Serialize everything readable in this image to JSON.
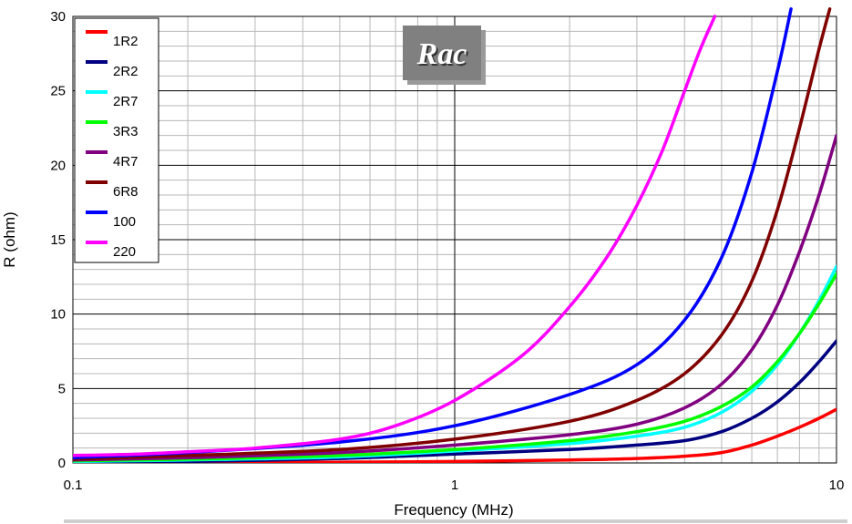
{
  "chart_data": {
    "type": "line",
    "title": "",
    "annotation": "Rac",
    "xlabel": "Frequency (MHz)",
    "ylabel": "R (ohm)",
    "x_scale": "log",
    "xlim": [
      0.1,
      10
    ],
    "ylim": [
      0,
      30
    ],
    "x_ticks": [
      0.1,
      1,
      10
    ],
    "x_tick_labels": [
      "0.1",
      "1",
      "10"
    ],
    "y_ticks": [
      0,
      5,
      10,
      15,
      20,
      25,
      30
    ],
    "y_tick_labels": [
      "0",
      "5",
      "10",
      "15",
      "20",
      "25",
      "30"
    ],
    "grid": true,
    "legend_position": "top-left",
    "series": [
      {
        "name": "1R2",
        "color": "#ff0000",
        "x": [
          0.1,
          0.2,
          0.5,
          1,
          2,
          3,
          4,
          5,
          6,
          7,
          8,
          9,
          10
        ],
        "y": [
          0,
          0.02,
          0.05,
          0.1,
          0.2,
          0.3,
          0.45,
          0.7,
          1.2,
          1.8,
          2.4,
          3.0,
          3.6
        ]
      },
      {
        "name": "2R2",
        "color": "#000080",
        "x": [
          0.1,
          0.2,
          0.5,
          1,
          2,
          3,
          4,
          5,
          6,
          7,
          8,
          9,
          10
        ],
        "y": [
          0.05,
          0.1,
          0.3,
          0.6,
          0.9,
          1.2,
          1.5,
          2.1,
          3.0,
          4.1,
          5.4,
          6.8,
          8.2
        ]
      },
      {
        "name": "2R7",
        "color": "#00ffff",
        "x": [
          0.1,
          0.2,
          0.5,
          1,
          2,
          3,
          4,
          5,
          6,
          7,
          8,
          9,
          10
        ],
        "y": [
          0.1,
          0.2,
          0.4,
          0.8,
          1.3,
          1.8,
          2.4,
          3.4,
          4.8,
          6.6,
          8.7,
          10.9,
          13.2
        ]
      },
      {
        "name": "3R3",
        "color": "#00ff00",
        "x": [
          0.1,
          0.2,
          0.5,
          1,
          2,
          3,
          4,
          5,
          6,
          7,
          8,
          9,
          10
        ],
        "y": [
          0.15,
          0.25,
          0.5,
          0.9,
          1.5,
          2.1,
          2.8,
          3.8,
          5.1,
          6.8,
          8.7,
          10.7,
          12.7
        ]
      },
      {
        "name": "4R7",
        "color": "#800080",
        "x": [
          0.1,
          0.2,
          0.5,
          1,
          2,
          3,
          4,
          5,
          6,
          7,
          8,
          9,
          10
        ],
        "y": [
          0.2,
          0.35,
          0.7,
          1.2,
          1.9,
          2.6,
          3.7,
          5.3,
          7.6,
          10.6,
          14.2,
          18.0,
          22.0
        ]
      },
      {
        "name": "6R8",
        "color": "#800000",
        "x": [
          0.1,
          0.2,
          0.5,
          1,
          2,
          3,
          4,
          5,
          6,
          7,
          8,
          9,
          9.6
        ],
        "y": [
          0.25,
          0.5,
          0.9,
          1.6,
          2.8,
          4.2,
          6.0,
          8.6,
          12.2,
          17.0,
          22.5,
          27.8,
          30.5
        ]
      },
      {
        "name": "100",
        "color": "#0000ff",
        "x": [
          0.1,
          0.2,
          0.5,
          1,
          2,
          3,
          4,
          5,
          6,
          7,
          7.6
        ],
        "y": [
          0.35,
          0.7,
          1.4,
          2.5,
          4.6,
          6.6,
          9.6,
          13.8,
          19.5,
          26.3,
          30.5
        ]
      },
      {
        "name": "220",
        "color": "#ff00ff",
        "x": [
          0.1,
          0.15,
          0.2,
          0.3,
          0.5,
          0.7,
          1,
          1.5,
          2,
          2.5,
          3,
          3.5,
          4,
          4.4,
          4.8
        ],
        "y": [
          0.5,
          0.6,
          0.75,
          1.0,
          1.6,
          2.5,
          4.2,
          7.2,
          10.5,
          13.8,
          17.3,
          21.0,
          25.0,
          27.8,
          30.0
        ]
      }
    ]
  }
}
